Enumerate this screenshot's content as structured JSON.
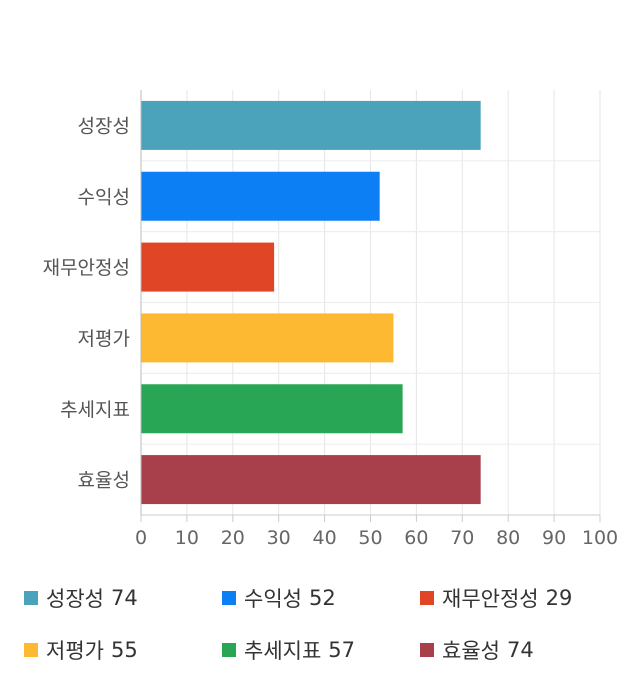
{
  "chart_data": {
    "type": "bar",
    "orientation": "horizontal",
    "categories": [
      "성장성",
      "수익성",
      "재무안정성",
      "저평가",
      "추세지표",
      "효율성"
    ],
    "values": [
      74,
      52,
      29,
      55,
      57,
      74
    ],
    "colors": [
      "#4aa3ba",
      "#0c7ff5",
      "#e04526",
      "#fcb931",
      "#29a655",
      "#a8404c"
    ],
    "xlim": [
      0,
      100
    ],
    "x_ticks": [
      "0",
      "10",
      "20",
      "30",
      "40",
      "50",
      "60",
      "70",
      "80",
      "90",
      "100"
    ],
    "grid": true,
    "legend_position": "bottom"
  },
  "legend": [
    {
      "label": "성장성",
      "value": "74"
    },
    {
      "label": "수익성",
      "value": "52"
    },
    {
      "label": "재무안정성",
      "value": "29"
    },
    {
      "label": "저평가",
      "value": "55"
    },
    {
      "label": "추세지표",
      "value": "57"
    },
    {
      "label": "효율성",
      "value": "74"
    }
  ]
}
